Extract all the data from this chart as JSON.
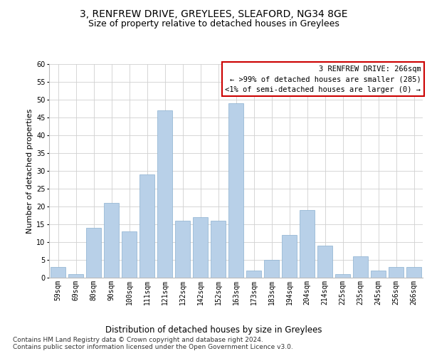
{
  "title1": "3, RENFREW DRIVE, GREYLEES, SLEAFORD, NG34 8GE",
  "title2": "Size of property relative to detached houses in Greylees",
  "xlabel": "Distribution of detached houses by size in Greylees",
  "ylabel": "Number of detached properties",
  "categories": [
    "59sqm",
    "69sqm",
    "80sqm",
    "90sqm",
    "100sqm",
    "111sqm",
    "121sqm",
    "132sqm",
    "142sqm",
    "152sqm",
    "163sqm",
    "173sqm",
    "183sqm",
    "194sqm",
    "204sqm",
    "214sqm",
    "225sqm",
    "235sqm",
    "245sqm",
    "256sqm",
    "266sqm"
  ],
  "values": [
    3,
    1,
    14,
    21,
    13,
    29,
    47,
    16,
    17,
    16,
    49,
    2,
    5,
    12,
    19,
    9,
    1,
    6,
    2,
    3,
    3
  ],
  "bar_color": "#b8d0e8",
  "bar_edge_color": "#8ab0d0",
  "box_edge_color": "#cc0000",
  "grid_color": "#d0d0d0",
  "background_color": "#ffffff",
  "ylim": [
    0,
    60
  ],
  "yticks": [
    0,
    5,
    10,
    15,
    20,
    25,
    30,
    35,
    40,
    45,
    50,
    55,
    60
  ],
  "annotation_box_text": "3 RENFREW DRIVE: 266sqm\n← >99% of detached houses are smaller (285)\n<1% of semi-detached houses are larger (0) →",
  "footer_text": "Contains HM Land Registry data © Crown copyright and database right 2024.\nContains public sector information licensed under the Open Government Licence v3.0.",
  "title1_fontsize": 10,
  "title2_fontsize": 9,
  "xlabel_fontsize": 8.5,
  "ylabel_fontsize": 8,
  "tick_fontsize": 7,
  "annotation_fontsize": 7.5,
  "footer_fontsize": 6.5
}
